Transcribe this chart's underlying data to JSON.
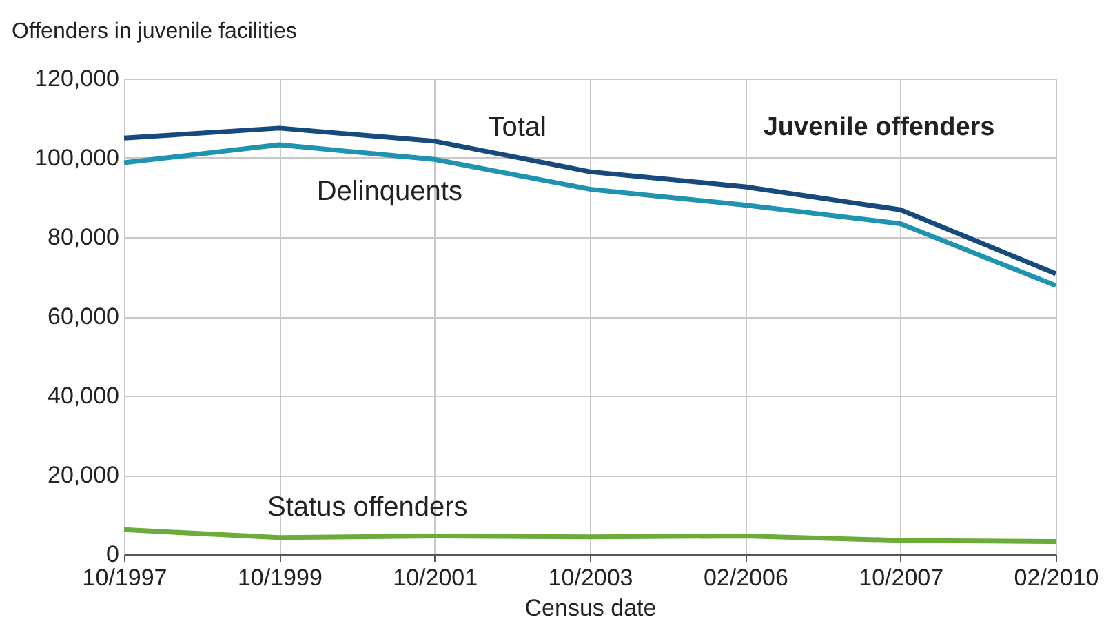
{
  "chart_data": {
    "type": "line",
    "title": "Juvenile offenders",
    "xlabel": "Census date",
    "ylabel": "Offenders in juvenile facilities",
    "categories": [
      "10/1997",
      "10/1999",
      "10/2001",
      "10/2003",
      "02/2006",
      "10/2007",
      "02/2010"
    ],
    "series": [
      {
        "name": "Total",
        "color": "#174a7c",
        "values": [
          105000,
          107500,
          104200,
          96500,
          92700,
          86900,
          70800
        ]
      },
      {
        "name": "Delinquents",
        "color": "#1f93b0",
        "values": [
          98800,
          103300,
          99600,
          92100,
          88100,
          83400,
          67800
        ]
      },
      {
        "name": "Status offenders",
        "color": "#6aab3a",
        "values": [
          6200,
          4200,
          4600,
          4400,
          4600,
          3500,
          3200
        ]
      }
    ],
    "ylim": [
      0,
      120000
    ],
    "yticks": [
      0,
      {
        "value": 20000,
        "label": "20,000"
      },
      {
        "value": 40000,
        "label": "40,000"
      },
      {
        "value": 60000,
        "label": "60,000"
      },
      {
        "value": 80000,
        "label": "80,000"
      },
      {
        "value": 100000,
        "label": "100,000"
      },
      {
        "value": 120000,
        "label": "120,000"
      }
    ],
    "grid": true,
    "legend": false,
    "marker": "none",
    "line_style": "solid"
  }
}
